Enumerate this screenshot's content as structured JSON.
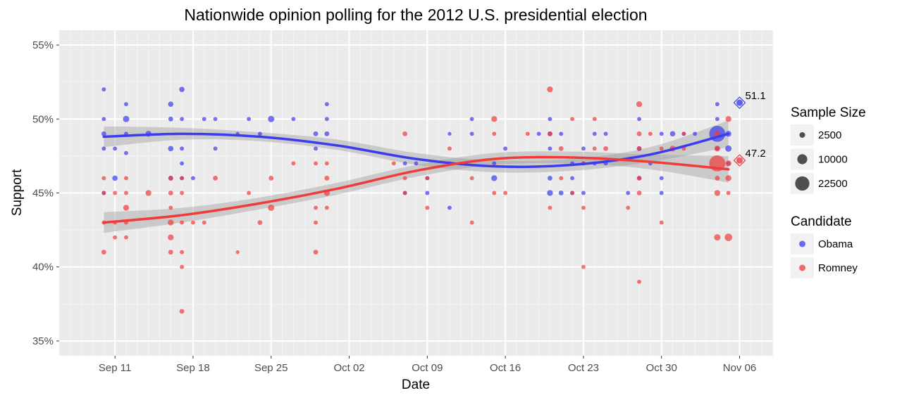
{
  "chart_data": {
    "type": "scatter",
    "title": "Nationwide opinion polling for the 2012 U.S. presidential election",
    "xlabel": "Date",
    "ylabel": "Support",
    "x_tick_labels": [
      "Sep 11",
      "Sep 18",
      "Sep 25",
      "Oct 02",
      "Oct 09",
      "Oct 16",
      "Oct 23",
      "Oct 30",
      "Nov 06"
    ],
    "x_tick_dates": [
      "2012-09-11",
      "2012-09-18",
      "2012-09-25",
      "2012-10-02",
      "2012-10-09",
      "2012-10-16",
      "2012-10-23",
      "2012-10-30",
      "2012-11-06"
    ],
    "xlim": [
      "2012-09-06",
      "2012-11-09"
    ],
    "y_tick_labels": [
      "35%",
      "40%",
      "45%",
      "50%",
      "55%"
    ],
    "y_ticks": [
      35,
      40,
      45,
      50,
      55
    ],
    "ylim": [
      34,
      56
    ],
    "grid": true,
    "legend_position": "right",
    "size_legend": {
      "title": "Sample Size",
      "entries": [
        {
          "label": "2500",
          "value": 2500
        },
        {
          "label": "10000",
          "value": 10000
        },
        {
          "label": "22500",
          "value": 22500
        }
      ]
    },
    "color_legend": {
      "title": "Candidate",
      "entries": [
        {
          "label": "Obama",
          "color": "#3b3bf0"
        },
        {
          "label": "Romney",
          "color": "#f03b3b"
        }
      ]
    },
    "series": [
      {
        "name": "Obama",
        "color": "#3b3bf0",
        "points": [
          [
            "2012-09-10",
            52,
            1500
          ],
          [
            "2012-09-10",
            50,
            1500
          ],
          [
            "2012-09-10",
            49,
            2000
          ],
          [
            "2012-09-10",
            48,
            1500
          ],
          [
            "2012-09-10",
            45,
            1500
          ],
          [
            "2012-09-11",
            48,
            1500
          ],
          [
            "2012-09-11",
            46,
            2500
          ],
          [
            "2012-09-12",
            51,
            1500
          ],
          [
            "2012-09-12",
            50,
            3500
          ],
          [
            "2012-09-12",
            49,
            1500
          ],
          [
            "2012-09-12",
            47.7,
            1500
          ],
          [
            "2012-09-14",
            49,
            3000
          ],
          [
            "2012-09-16",
            51,
            2500
          ],
          [
            "2012-09-16",
            50,
            2000
          ],
          [
            "2012-09-16",
            48,
            2500
          ],
          [
            "2012-09-16",
            46,
            2000
          ],
          [
            "2012-09-17",
            52,
            2500
          ],
          [
            "2012-09-17",
            50,
            1500
          ],
          [
            "2012-09-17",
            48,
            1500
          ],
          [
            "2012-09-17",
            47,
            1500
          ],
          [
            "2012-09-17",
            46,
            1500
          ],
          [
            "2012-09-18",
            46,
            1500
          ],
          [
            "2012-09-19",
            50,
            1500
          ],
          [
            "2012-09-20",
            50,
            1500
          ],
          [
            "2012-09-20",
            48,
            1500
          ],
          [
            "2012-09-22",
            49,
            1200
          ],
          [
            "2012-09-23",
            50,
            1500
          ],
          [
            "2012-09-24",
            49,
            1500
          ],
          [
            "2012-09-25",
            50,
            3500
          ],
          [
            "2012-09-27",
            50,
            1500
          ],
          [
            "2012-09-29",
            49,
            2000
          ],
          [
            "2012-09-29",
            48,
            1500
          ],
          [
            "2012-09-30",
            51,
            1500
          ],
          [
            "2012-09-30",
            50,
            1500
          ],
          [
            "2012-09-30",
            49,
            2000
          ],
          [
            "2012-10-07",
            47,
            1500
          ],
          [
            "2012-10-07",
            45,
            1500
          ],
          [
            "2012-10-08",
            47,
            1500
          ],
          [
            "2012-10-09",
            46,
            1500
          ],
          [
            "2012-10-09",
            45,
            1500
          ],
          [
            "2012-10-11",
            49,
            1200
          ],
          [
            "2012-10-11",
            47,
            1500
          ],
          [
            "2012-10-11",
            44,
            1500
          ],
          [
            "2012-10-13",
            50,
            1500
          ],
          [
            "2012-10-13",
            49,
            1500
          ],
          [
            "2012-10-15",
            47,
            1500
          ],
          [
            "2012-10-15",
            46,
            3000
          ],
          [
            "2012-10-16",
            48,
            1500
          ],
          [
            "2012-10-19",
            49,
            1500
          ],
          [
            "2012-10-20",
            50,
            1500
          ],
          [
            "2012-10-20",
            49,
            2000
          ],
          [
            "2012-10-20",
            48,
            1500
          ],
          [
            "2012-10-20",
            46,
            2000
          ],
          [
            "2012-10-20",
            45,
            3000
          ],
          [
            "2012-10-21",
            49,
            1500
          ],
          [
            "2012-10-21",
            45,
            2000
          ],
          [
            "2012-10-22",
            47,
            1500
          ],
          [
            "2012-10-22",
            46,
            1500
          ],
          [
            "2012-10-22",
            45,
            1500
          ],
          [
            "2012-10-23",
            48,
            1500
          ],
          [
            "2012-10-23",
            45,
            1500
          ],
          [
            "2012-10-23",
            47,
            1500
          ],
          [
            "2012-10-24",
            49,
            1500
          ],
          [
            "2012-10-24",
            47,
            1500
          ],
          [
            "2012-10-25",
            49,
            1500
          ],
          [
            "2012-10-25",
            47,
            1500
          ],
          [
            "2012-10-27",
            45,
            1500
          ],
          [
            "2012-10-28",
            50,
            1500
          ],
          [
            "2012-10-28",
            48,
            2000
          ],
          [
            "2012-10-28",
            46,
            1500
          ],
          [
            "2012-10-29",
            47,
            1500
          ],
          [
            "2012-10-30",
            49,
            1500
          ],
          [
            "2012-10-30",
            46,
            1500
          ],
          [
            "2012-10-30",
            45,
            1500
          ],
          [
            "2012-10-31",
            49,
            2500
          ],
          [
            "2012-11-01",
            49,
            1500
          ],
          [
            "2012-11-02",
            49,
            1500
          ],
          [
            "2012-11-04",
            51,
            1500
          ],
          [
            "2012-11-04",
            50,
            1500
          ],
          [
            "2012-11-04",
            49,
            22500
          ],
          [
            "2012-11-04",
            48,
            1500
          ],
          [
            "2012-11-05",
            49,
            3000
          ],
          [
            "2012-11-05",
            48,
            3500
          ],
          [
            "2012-11-05",
            47,
            1500
          ]
        ]
      },
      {
        "name": "Romney",
        "color": "#f03b3b",
        "points": [
          [
            "2012-09-10",
            46,
            1500
          ],
          [
            "2012-09-10",
            45,
            1500
          ],
          [
            "2012-09-10",
            43,
            1500
          ],
          [
            "2012-09-10",
            41,
            2000
          ],
          [
            "2012-09-11",
            45,
            1500
          ],
          [
            "2012-09-11",
            43,
            1500
          ],
          [
            "2012-09-11",
            42,
            1500
          ],
          [
            "2012-09-12",
            46,
            1500
          ],
          [
            "2012-09-12",
            45,
            1500
          ],
          [
            "2012-09-12",
            44,
            3000
          ],
          [
            "2012-09-12",
            43,
            1500
          ],
          [
            "2012-09-12",
            42,
            1500
          ],
          [
            "2012-09-14",
            45,
            3000
          ],
          [
            "2012-09-16",
            46,
            2000
          ],
          [
            "2012-09-16",
            45,
            2000
          ],
          [
            "2012-09-16",
            44,
            1500
          ],
          [
            "2012-09-16",
            43,
            3000
          ],
          [
            "2012-09-16",
            42,
            3000
          ],
          [
            "2012-09-16",
            41,
            2000
          ],
          [
            "2012-09-17",
            46,
            1500
          ],
          [
            "2012-09-17",
            45,
            1500
          ],
          [
            "2012-09-17",
            43,
            1500
          ],
          [
            "2012-09-17",
            41,
            1500
          ],
          [
            "2012-09-17",
            40,
            1500
          ],
          [
            "2012-09-17",
            37,
            2000
          ],
          [
            "2012-09-18",
            43,
            1500
          ],
          [
            "2012-09-19",
            43,
            1500
          ],
          [
            "2012-09-20",
            46,
            2000
          ],
          [
            "2012-09-22",
            41,
            1200
          ],
          [
            "2012-09-23",
            45,
            1500
          ],
          [
            "2012-09-24",
            43,
            2000
          ],
          [
            "2012-09-25",
            46,
            2000
          ],
          [
            "2012-09-25",
            44,
            3500
          ],
          [
            "2012-09-27",
            47,
            1500
          ],
          [
            "2012-09-29",
            47,
            1500
          ],
          [
            "2012-09-29",
            44,
            1500
          ],
          [
            "2012-09-29",
            43,
            1500
          ],
          [
            "2012-09-29",
            41,
            2000
          ],
          [
            "2012-09-30",
            47,
            1500
          ],
          [
            "2012-09-30",
            46,
            2000
          ],
          [
            "2012-09-30",
            45,
            3000
          ],
          [
            "2012-09-30",
            44,
            1500
          ],
          [
            "2012-10-06",
            47,
            1500
          ],
          [
            "2012-10-07",
            49,
            2000
          ],
          [
            "2012-10-07",
            46,
            1500
          ],
          [
            "2012-10-07",
            45,
            1500
          ],
          [
            "2012-10-09",
            46,
            1500
          ],
          [
            "2012-10-09",
            44,
            1500
          ],
          [
            "2012-10-11",
            48,
            1500
          ],
          [
            "2012-10-13",
            46,
            1500
          ],
          [
            "2012-10-13",
            43,
            1500
          ],
          [
            "2012-10-15",
            50,
            3000
          ],
          [
            "2012-10-15",
            49,
            1500
          ],
          [
            "2012-10-15",
            45,
            1500
          ],
          [
            "2012-10-16",
            45,
            1500
          ],
          [
            "2012-10-18",
            49,
            1500
          ],
          [
            "2012-10-20",
            52,
            3000
          ],
          [
            "2012-10-20",
            49,
            2000
          ],
          [
            "2012-10-20",
            44,
            1500
          ],
          [
            "2012-10-21",
            48,
            2000
          ],
          [
            "2012-10-21",
            46,
            1500
          ],
          [
            "2012-10-22",
            50,
            1500
          ],
          [
            "2012-10-22",
            45,
            1500
          ],
          [
            "2012-10-23",
            47,
            1500
          ],
          [
            "2012-10-23",
            44,
            1500
          ],
          [
            "2012-10-23",
            40,
            1500
          ],
          [
            "2012-10-24",
            50,
            1500
          ],
          [
            "2012-10-24",
            48,
            1500
          ],
          [
            "2012-10-25",
            48,
            2000
          ],
          [
            "2012-10-27",
            44,
            1500
          ],
          [
            "2012-10-28",
            51,
            3000
          ],
          [
            "2012-10-28",
            49,
            2000
          ],
          [
            "2012-10-28",
            48,
            2000
          ],
          [
            "2012-10-28",
            46,
            2000
          ],
          [
            "2012-10-28",
            45,
            2000
          ],
          [
            "2012-10-28",
            39,
            1500
          ],
          [
            "2012-10-29",
            49,
            1500
          ],
          [
            "2012-10-30",
            48,
            1500
          ],
          [
            "2012-10-30",
            43,
            1500
          ],
          [
            "2012-10-31",
            48,
            3000
          ],
          [
            "2012-11-01",
            49,
            1500
          ],
          [
            "2012-11-01",
            48,
            1500
          ],
          [
            "2012-11-04",
            49,
            3000
          ],
          [
            "2012-11-04",
            48,
            3000
          ],
          [
            "2012-11-04",
            47,
            22500
          ],
          [
            "2012-11-04",
            46,
            2000
          ],
          [
            "2012-11-04",
            45,
            3000
          ],
          [
            "2012-11-04",
            42,
            3500
          ],
          [
            "2012-11-05",
            50,
            3000
          ],
          [
            "2012-11-05",
            47,
            3000
          ],
          [
            "2012-11-05",
            46,
            3000
          ],
          [
            "2012-11-05",
            45,
            1500
          ],
          [
            "2012-11-05",
            42,
            5000
          ]
        ]
      }
    ],
    "trend_lines": [
      {
        "name": "Obama",
        "color": "#3b3bf0",
        "points": [
          [
            "2012-09-10",
            48.8
          ],
          [
            "2012-09-17",
            49
          ],
          [
            "2012-09-24",
            48.8
          ],
          [
            "2012-10-01",
            48.2
          ],
          [
            "2012-10-08",
            47.3
          ],
          [
            "2012-10-15",
            46.8
          ],
          [
            "2012-10-22",
            46.9
          ],
          [
            "2012-10-29",
            47.6
          ],
          [
            "2012-11-05",
            49
          ]
        ],
        "band": [
          [
            48.1,
            49.5
          ],
          [
            48.6,
            49.4
          ],
          [
            48.5,
            49.1
          ],
          [
            47.9,
            48.6
          ],
          [
            46.9,
            47.7
          ],
          [
            46.4,
            47.2
          ],
          [
            46.5,
            47.3
          ],
          [
            47.1,
            48.1
          ],
          [
            48.1,
            49.9
          ]
        ]
      },
      {
        "name": "Romney",
        "color": "#f03b3b",
        "points": [
          [
            "2012-09-10",
            43
          ],
          [
            "2012-09-17",
            43.5
          ],
          [
            "2012-09-24",
            44.3
          ],
          [
            "2012-10-01",
            45.3
          ],
          [
            "2012-10-08",
            46.5
          ],
          [
            "2012-10-15",
            47.3
          ],
          [
            "2012-10-22",
            47.4
          ],
          [
            "2012-10-29",
            47.1
          ],
          [
            "2012-11-05",
            46.6
          ]
        ],
        "band": [
          [
            42.3,
            43.7
          ],
          [
            43,
            44
          ],
          [
            43.9,
            44.7
          ],
          [
            44.9,
            45.7
          ],
          [
            46.1,
            46.9
          ],
          [
            46.9,
            47.7
          ],
          [
            47,
            47.8
          ],
          [
            46.6,
            47.6
          ],
          [
            45.7,
            47.5
          ]
        ]
      }
    ],
    "end_markers": [
      {
        "name": "Obama",
        "date": "2012-11-06",
        "value": 51.1,
        "label": "51.1",
        "color": "#3b3bf0"
      },
      {
        "name": "Romney",
        "date": "2012-11-06",
        "value": 47.2,
        "label": "47.2",
        "color": "#f03b3b"
      }
    ]
  }
}
